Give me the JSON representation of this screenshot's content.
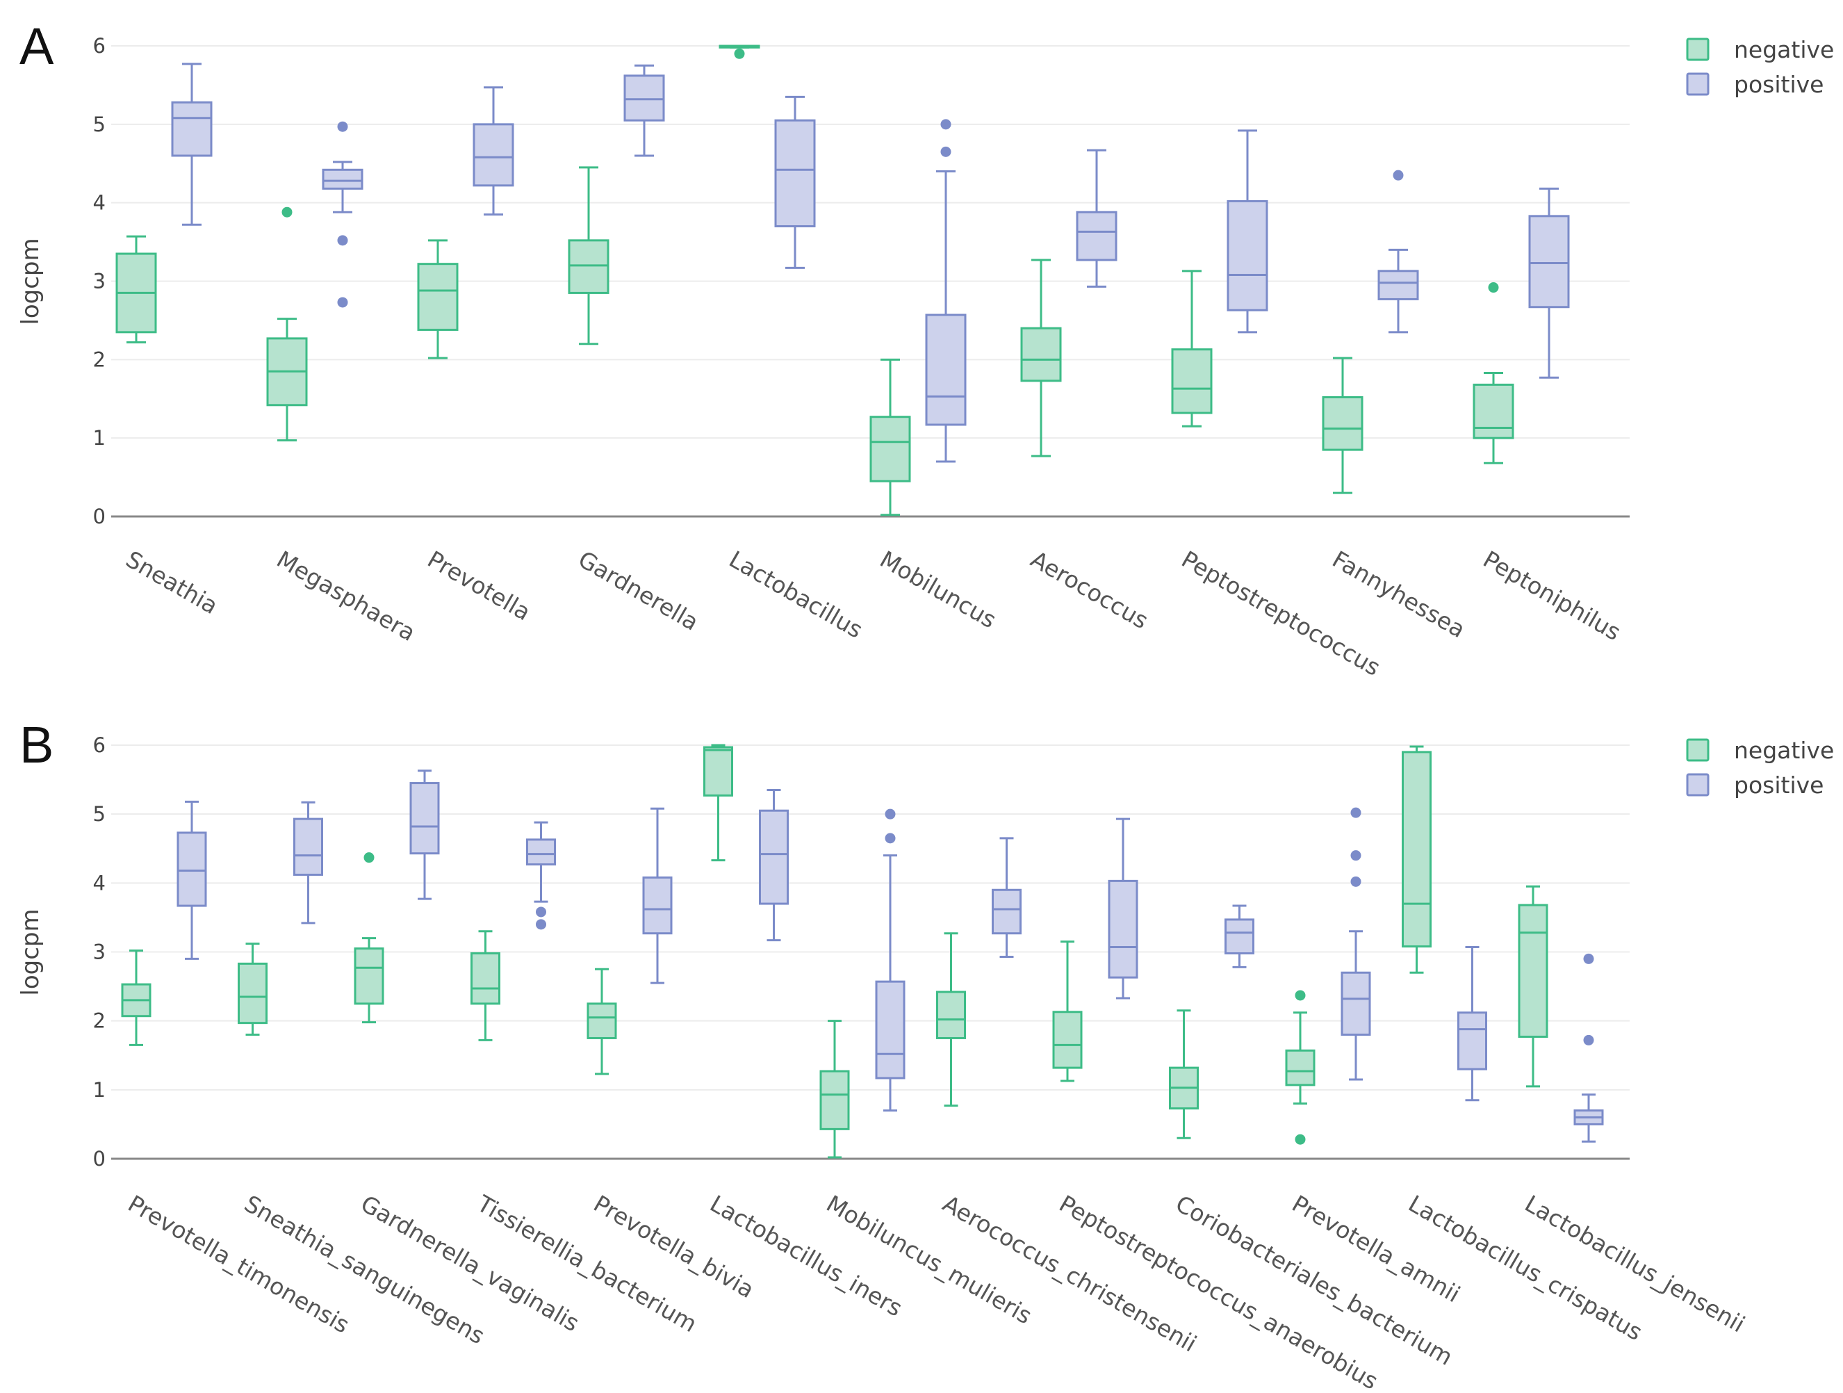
{
  "colors": {
    "negative": "#3dbc87",
    "negative_fill": "#b6e3cf",
    "positive": "#7b8bc9",
    "positive_fill": "#cdd2ec"
  },
  "chart_data": [
    {
      "panel": "A",
      "type": "box",
      "ylabel": "logcpm",
      "ylim": [
        0,
        6
      ],
      "yticks": [
        "0",
        "1",
        "2",
        "3",
        "4",
        "5",
        "6"
      ],
      "legend": {
        "position": "top-right",
        "entries": [
          "negative",
          "positive"
        ]
      },
      "categories": [
        "Sneathia",
        "Megasphaera",
        "Prevotella",
        "Gardnerella",
        "Lactobacillus",
        "Mobiluncus",
        "Aerococcus",
        "Peptostreptococcus",
        "Fannyhessea",
        "Peptoniphilus"
      ],
      "series": [
        {
          "name": "negative",
          "boxes": [
            {
              "lo": 2.22,
              "q1": 2.35,
              "med": 2.85,
              "q3": 3.35,
              "hi": 3.57,
              "out": []
            },
            {
              "lo": 0.97,
              "q1": 1.42,
              "med": 1.85,
              "q3": 2.27,
              "hi": 2.52,
              "out": [
                3.88
              ]
            },
            {
              "lo": 2.02,
              "q1": 2.38,
              "med": 2.88,
              "q3": 3.22,
              "hi": 3.52,
              "out": []
            },
            {
              "lo": 2.2,
              "q1": 2.85,
              "med": 3.2,
              "q3": 3.52,
              "hi": 4.45,
              "out": []
            },
            {
              "lo": 5.98,
              "q1": 5.98,
              "med": 6.0,
              "q3": 6.0,
              "hi": 6.0,
              "out": [
                5.9
              ]
            },
            {
              "lo": 0.02,
              "q1": 0.45,
              "med": 0.95,
              "q3": 1.27,
              "hi": 2.0,
              "out": []
            },
            {
              "lo": 0.77,
              "q1": 1.73,
              "med": 2.0,
              "q3": 2.4,
              "hi": 3.27,
              "out": []
            },
            {
              "lo": 1.15,
              "q1": 1.32,
              "med": 1.63,
              "q3": 2.13,
              "hi": 3.13,
              "out": []
            },
            {
              "lo": 0.3,
              "q1": 0.85,
              "med": 1.12,
              "q3": 1.52,
              "hi": 2.02,
              "out": []
            },
            {
              "lo": 0.68,
              "q1": 1.0,
              "med": 1.13,
              "q3": 1.68,
              "hi": 1.83,
              "out": [
                2.92
              ]
            }
          ]
        },
        {
          "name": "positive",
          "boxes": [
            {
              "lo": 3.72,
              "q1": 4.6,
              "med": 5.08,
              "q3": 5.28,
              "hi": 5.77,
              "out": []
            },
            {
              "lo": 3.88,
              "q1": 4.18,
              "med": 4.28,
              "q3": 4.42,
              "hi": 4.52,
              "out": [
                4.97,
                3.52,
                2.73
              ]
            },
            {
              "lo": 3.85,
              "q1": 4.22,
              "med": 4.58,
              "q3": 5.0,
              "hi": 5.47,
              "out": []
            },
            {
              "lo": 4.6,
              "q1": 5.05,
              "med": 5.32,
              "q3": 5.62,
              "hi": 5.75,
              "out": []
            },
            {
              "lo": 3.17,
              "q1": 3.7,
              "med": 4.42,
              "q3": 5.05,
              "hi": 5.35,
              "out": []
            },
            {
              "lo": 0.7,
              "q1": 1.17,
              "med": 1.53,
              "q3": 2.57,
              "hi": 4.4,
              "out": [
                4.65,
                5.0
              ]
            },
            {
              "lo": 2.93,
              "q1": 3.27,
              "med": 3.63,
              "q3": 3.88,
              "hi": 4.67,
              "out": []
            },
            {
              "lo": 2.35,
              "q1": 2.63,
              "med": 3.08,
              "q3": 4.02,
              "hi": 4.92,
              "out": []
            },
            {
              "lo": 2.35,
              "q1": 2.77,
              "med": 2.98,
              "q3": 3.13,
              "hi": 3.4,
              "out": [
                4.35
              ]
            },
            {
              "lo": 1.77,
              "q1": 2.67,
              "med": 3.23,
              "q3": 3.83,
              "hi": 4.18,
              "out": []
            }
          ]
        }
      ]
    },
    {
      "panel": "B",
      "type": "box",
      "ylabel": "logcpm",
      "ylim": [
        0,
        6
      ],
      "yticks": [
        "0",
        "1",
        "2",
        "3",
        "4",
        "5",
        "6"
      ],
      "legend": {
        "position": "top-right",
        "entries": [
          "negative",
          "positive"
        ]
      },
      "categories": [
        "Prevotella_timonensis",
        "Sneathia_sanguinegens",
        "Gardnerella_vaginalis",
        "Tissierellia_bacterium",
        "Prevotella_bivia",
        "Lactobacillus_iners",
        "Mobiluncus_mulieris",
        "Aerococcus_christensenii",
        "Peptostreptococcus_anaerobius",
        "Coriobacteriales_bacterium",
        "Prevotella_amnii",
        "Lactobacillus_crispatus",
        "Lactobacillus_jensenii"
      ],
      "series": [
        {
          "name": "negative",
          "boxes": [
            {
              "lo": 1.65,
              "q1": 2.07,
              "med": 2.3,
              "q3": 2.53,
              "hi": 3.02,
              "out": []
            },
            {
              "lo": 1.8,
              "q1": 1.97,
              "med": 2.35,
              "q3": 2.83,
              "hi": 3.12,
              "out": []
            },
            {
              "lo": 1.98,
              "q1": 2.25,
              "med": 2.77,
              "q3": 3.05,
              "hi": 3.2,
              "out": [
                4.37
              ]
            },
            {
              "lo": 1.72,
              "q1": 2.25,
              "med": 2.47,
              "q3": 2.98,
              "hi": 3.3,
              "out": []
            },
            {
              "lo": 1.23,
              "q1": 1.75,
              "med": 2.05,
              "q3": 2.25,
              "hi": 2.75,
              "out": []
            },
            {
              "lo": 4.33,
              "q1": 5.27,
              "med": 5.93,
              "q3": 5.97,
              "hi": 6.0,
              "out": []
            },
            {
              "lo": 0.02,
              "q1": 0.43,
              "med": 0.93,
              "q3": 1.27,
              "hi": 2.0,
              "out": []
            },
            {
              "lo": 0.77,
              "q1": 1.75,
              "med": 2.02,
              "q3": 2.42,
              "hi": 3.27,
              "out": []
            },
            {
              "lo": 1.13,
              "q1": 1.32,
              "med": 1.65,
              "q3": 2.13,
              "hi": 3.15,
              "out": []
            },
            {
              "lo": 0.3,
              "q1": 0.73,
              "med": 1.03,
              "q3": 1.32,
              "hi": 2.15,
              "out": []
            },
            {
              "lo": 0.8,
              "q1": 1.07,
              "med": 1.27,
              "q3": 1.57,
              "hi": 2.12,
              "out": [
                2.37,
                0.28
              ]
            },
            {
              "lo": 2.7,
              "q1": 3.08,
              "med": 3.7,
              "q3": 5.9,
              "hi": 5.98,
              "out": []
            },
            {
              "lo": 1.05,
              "q1": 1.77,
              "med": 3.28,
              "q3": 3.68,
              "hi": 3.95,
              "out": []
            }
          ]
        },
        {
          "name": "positive",
          "boxes": [
            {
              "lo": 2.9,
              "q1": 3.67,
              "med": 4.18,
              "q3": 4.73,
              "hi": 5.18,
              "out": []
            },
            {
              "lo": 3.42,
              "q1": 4.12,
              "med": 4.4,
              "q3": 4.93,
              "hi": 5.17,
              "out": []
            },
            {
              "lo": 3.77,
              "q1": 4.43,
              "med": 4.82,
              "q3": 5.45,
              "hi": 5.63,
              "out": []
            },
            {
              "lo": 3.73,
              "q1": 4.27,
              "med": 4.42,
              "q3": 4.63,
              "hi": 4.88,
              "out": [
                3.58,
                3.4
              ]
            },
            {
              "lo": 2.55,
              "q1": 3.27,
              "med": 3.62,
              "q3": 4.08,
              "hi": 5.08,
              "out": []
            },
            {
              "lo": 3.17,
              "q1": 3.7,
              "med": 4.42,
              "q3": 5.05,
              "hi": 5.35,
              "out": []
            },
            {
              "lo": 0.7,
              "q1": 1.17,
              "med": 1.52,
              "q3": 2.57,
              "hi": 4.4,
              "out": [
                4.65,
                5.0
              ]
            },
            {
              "lo": 2.93,
              "q1": 3.27,
              "med": 3.62,
              "q3": 3.9,
              "hi": 4.65,
              "out": []
            },
            {
              "lo": 2.33,
              "q1": 2.63,
              "med": 3.07,
              "q3": 4.03,
              "hi": 4.93,
              "out": []
            },
            {
              "lo": 2.78,
              "q1": 2.98,
              "med": 3.28,
              "q3": 3.47,
              "hi": 3.67,
              "out": []
            },
            {
              "lo": 1.15,
              "q1": 1.8,
              "med": 2.32,
              "q3": 2.7,
              "hi": 3.3,
              "out": [
                4.02,
                4.4,
                5.02
              ]
            },
            {
              "lo": 0.85,
              "q1": 1.3,
              "med": 1.88,
              "q3": 2.12,
              "hi": 3.07,
              "out": []
            },
            {
              "lo": 0.25,
              "q1": 0.5,
              "med": 0.6,
              "q3": 0.7,
              "hi": 0.93,
              "out": [
                1.72,
                2.9
              ]
            }
          ]
        }
      ]
    }
  ]
}
